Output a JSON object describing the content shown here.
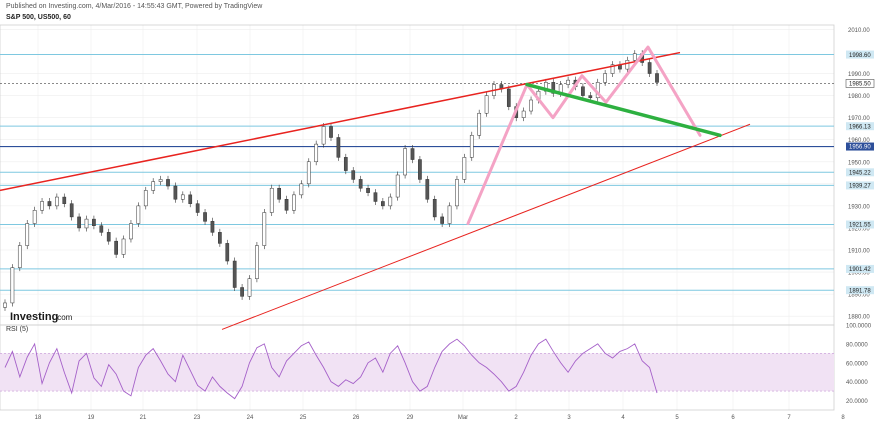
{
  "header": {
    "published": "Published on Investing.com, 4/Mar/2016 - 14:55:43 GMT, Powered by TradingView",
    "symbol": "S&P 500, US500, 60"
  },
  "logo": {
    "brand": "Investing",
    "suffix": ".com"
  },
  "colors": {
    "trendline_red": "#e8231f",
    "pattern_pink": "#f4a3c5",
    "neckline_green": "#2db040",
    "horizontal_blue": "#7ec8e0",
    "key_level_blue": "#2d4f9a",
    "candle_up": "#222222",
    "candle_down": "#555555",
    "rsi_line": "#a561c9",
    "rsi_band": "#f1e2f4",
    "price_tag_bg": "#cfe8f3",
    "grid": "#eeeeee"
  },
  "chart_data": {
    "type": "candlestick",
    "price_axis": {
      "ticks": [
        "2010.00",
        "1990.00",
        "1980.00",
        "1970.00",
        "1960.00",
        "1950.00",
        "1940.00",
        "1930.00",
        "1920.00",
        "1910.00",
        "1900.00",
        "1890.00",
        "1880.00"
      ],
      "ylim": [
        1876,
        2012
      ]
    },
    "x_axis": {
      "labels": [
        "18",
        "19",
        "21",
        "23",
        "24",
        "25",
        "26",
        "29",
        "Mar",
        "2",
        "3",
        "4",
        "5",
        "6",
        "7",
        "8"
      ]
    },
    "price_levels": [
      {
        "label": "1998.60",
        "value": 1998.6,
        "style": "light"
      },
      {
        "label": "1985.50",
        "value": 1985.5,
        "style": "current"
      },
      {
        "label": "1966.13",
        "value": 1966.13,
        "style": "light"
      },
      {
        "label": "1956.90",
        "value": 1956.9,
        "style": "key"
      },
      {
        "label": "1945.22",
        "value": 1945.22,
        "style": "light"
      },
      {
        "label": "1939.27",
        "value": 1939.27,
        "style": "light"
      },
      {
        "label": "1921.55",
        "value": 1921.55,
        "style": "light"
      },
      {
        "label": "1901.42",
        "value": 1901.42,
        "style": "light"
      },
      {
        "label": "1891.78",
        "value": 1891.78,
        "style": "light"
      }
    ],
    "close_series": [
      1886,
      1902,
      1912,
      1922,
      1928,
      1932,
      1930,
      1934,
      1931,
      1925,
      1920,
      1924,
      1921,
      1918,
      1914,
      1908,
      1915,
      1922,
      1930,
      1937,
      1941,
      1942,
      1939,
      1933,
      1935,
      1931,
      1927,
      1923,
      1918,
      1913,
      1905,
      1893,
      1889,
      1897,
      1912,
      1927,
      1938,
      1933,
      1928,
      1935,
      1940,
      1950,
      1958,
      1966,
      1961,
      1952,
      1946,
      1942,
      1938,
      1936,
      1932,
      1930,
      1934,
      1944,
      1956,
      1951,
      1942,
      1933,
      1925,
      1922,
      1930,
      1942,
      1952,
      1962,
      1972,
      1980,
      1985,
      1983,
      1975,
      1970,
      1973,
      1978,
      1982,
      1986,
      1981,
      1985,
      1987,
      1984,
      1980,
      1979,
      1986,
      1990,
      1994,
      1992,
      1996,
      1999,
      1995,
      1990,
      1986
    ],
    "annotations": {
      "upper_channel": [
        {
          "x": 0,
          "y": 1937
        },
        {
          "x": 680,
          "y": 1999.5
        }
      ],
      "lower_channel": [
        {
          "x": 222,
          "y": 1874
        },
        {
          "x": 750,
          "y": 1967
        }
      ],
      "neckline": [
        {
          "x": 527,
          "y": 1985
        },
        {
          "x": 720,
          "y": 1962
        }
      ],
      "pattern_path": [
        {
          "x": 468,
          "y": 1922
        },
        {
          "x": 527,
          "y": 1985
        },
        {
          "x": 553,
          "y": 1970
        },
        {
          "x": 582,
          "y": 1989
        },
        {
          "x": 606,
          "y": 1977
        },
        {
          "x": 648,
          "y": 2002
        },
        {
          "x": 700,
          "y": 1962
        }
      ]
    },
    "rsi": {
      "label": "RSI (5)",
      "ticks": [
        "100.0000",
        "80.0000",
        "60.0000",
        "40.0000",
        "20.0000"
      ],
      "ylim": [
        10,
        100
      ],
      "overbought": 70,
      "oversold": 30,
      "values": [
        55,
        72,
        45,
        66,
        80,
        38,
        60,
        75,
        50,
        28,
        62,
        70,
        44,
        35,
        58,
        48,
        30,
        25,
        55,
        68,
        75,
        62,
        48,
        40,
        68,
        52,
        36,
        30,
        45,
        35,
        28,
        22,
        35,
        60,
        76,
        80,
        55,
        45,
        62,
        70,
        78,
        82,
        68,
        55,
        40,
        35,
        42,
        38,
        45,
        60,
        65,
        50,
        70,
        78,
        60,
        40,
        30,
        35,
        55,
        72,
        80,
        85,
        78,
        68,
        60,
        55,
        48,
        40,
        30,
        35,
        50,
        68,
        80,
        85,
        72,
        60,
        50,
        62,
        70,
        75,
        80,
        70,
        65,
        72,
        75,
        80,
        62,
        55,
        28
      ]
    }
  }
}
